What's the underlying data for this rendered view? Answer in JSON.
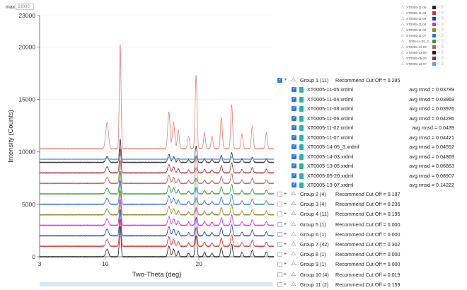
{
  "max_control": {
    "label": "max",
    "value": "23000"
  },
  "chart_data": {
    "type": "line",
    "xlabel": "Two-Theta (deg)",
    "ylabel": "Intensity (Counts)",
    "xlim": [
      3,
      28
    ],
    "ylim": [
      0,
      23000
    ],
    "x_ticks": [
      "3",
      "10",
      "20"
    ],
    "y_ticks": [
      "0",
      "5000",
      "10000",
      "15000",
      "20000",
      "23000"
    ],
    "y_tick_values": [
      0,
      5000,
      10000,
      15000,
      20000,
      23000
    ],
    "peaks": [
      {
        "x": 10.2,
        "h": 0.25,
        "w": 0.15
      },
      {
        "x": 11.6,
        "h": 1.0,
        "w": 0.09
      },
      {
        "x": 16.8,
        "h": 0.35,
        "w": 0.12
      },
      {
        "x": 17.3,
        "h": 0.25,
        "w": 0.12
      },
      {
        "x": 17.8,
        "h": 0.18,
        "w": 0.1
      },
      {
        "x": 18.9,
        "h": 0.12,
        "w": 0.1
      },
      {
        "x": 19.7,
        "h": 0.7,
        "w": 0.1
      },
      {
        "x": 20.6,
        "h": 0.15,
        "w": 0.1
      },
      {
        "x": 21.4,
        "h": 0.12,
        "w": 0.1
      },
      {
        "x": 22.4,
        "h": 0.3,
        "w": 0.1
      },
      {
        "x": 23.5,
        "h": 0.42,
        "w": 0.1
      },
      {
        "x": 24.6,
        "h": 0.14,
        "w": 0.1
      },
      {
        "x": 25.7,
        "h": 0.22,
        "w": 0.1
      },
      {
        "x": 27.2,
        "h": 0.15,
        "w": 0.1
      }
    ],
    "series": [
      {
        "offset": 0,
        "scale": 2900,
        "color": "#222222"
      },
      {
        "offset": 1000,
        "scale": 2600,
        "color": "#d03030"
      },
      {
        "offset": 2000,
        "scale": 2500,
        "color": "#2040c0"
      },
      {
        "offset": 3000,
        "scale": 2400,
        "color": "#d030d0"
      },
      {
        "offset": 4000,
        "scale": 2300,
        "color": "#8a8a20"
      },
      {
        "offset": 5000,
        "scale": 2300,
        "color": "#3070d0"
      },
      {
        "offset": 6000,
        "scale": 2200,
        "color": "#30a030"
      },
      {
        "offset": 7000,
        "scale": 2200,
        "color": "#b06060"
      },
      {
        "offset": 8000,
        "scale": 2300,
        "color": "#9a3030"
      },
      {
        "offset": 9000,
        "scale": 2200,
        "color": "#303030"
      },
      {
        "offset": 9300,
        "scale": 400,
        "color": "#60a0e0"
      },
      {
        "offset": 10300,
        "scale": 10000,
        "color": "#e08080"
      }
    ]
  },
  "legend": {
    "items": [
      {
        "name": "XT0005-11-05",
        "color": "#222222"
      },
      {
        "name": "XT0005-11-04",
        "color": "#d03030"
      },
      {
        "name": "XT0005-11-08",
        "color": "#2040c0"
      },
      {
        "name": "XT0005-11-06",
        "color": "#d030d0"
      },
      {
        "name": "XT0005-11-02",
        "color": "#8a8a20"
      },
      {
        "name": "XT0005-11-07",
        "color": "#3070d0"
      },
      {
        "name": "...0005-14-05_3...",
        "color": "#30a030"
      },
      {
        "name": "XT0005-14-03",
        "color": "#b06060"
      },
      {
        "name": "XT0005-13-05",
        "color": "#202020"
      },
      {
        "name": "XT0005-05-20",
        "color": "#9a3030"
      },
      {
        "name": "XT0005-13-07",
        "color": "#60a0e0"
      }
    ]
  },
  "group1": {
    "label": "Group 1 (11)",
    "cutoff": "Recommend Cut Off = 0.285",
    "files": [
      {
        "name": "XT0005-11-05.xrdml",
        "rmsd": "avg rmsd = 0.03789"
      },
      {
        "name": "XT0005-11-04.xrdml",
        "rmsd": "avg rmsd = 0.03969"
      },
      {
        "name": "XT0005-11-08.xrdml",
        "rmsd": "avg rmsd = 0.03976"
      },
      {
        "name": "XT0005-11-06.xrdml",
        "rmsd": "avg rmsd = 0.04286"
      },
      {
        "name": "XT0005-11-02.xrdml",
        "rmsd": "avg rmsd = 0.0439"
      },
      {
        "name": "XT0005-11-07.xrdml",
        "rmsd": "avg rmsd = 0.04421"
      },
      {
        "name": "XT0005-14-05_3.xrdml",
        "rmsd": "avg rmsd = 0.04552"
      },
      {
        "name": "XT0005-14-03.xrdml",
        "rmsd": "avg rmsd = 0.04869"
      },
      {
        "name": "XT0005-13-05.xrdml",
        "rmsd": "avg rmsd = 0.06883"
      },
      {
        "name": "XT0005-05-20.xrdml",
        "rmsd": "avg rmsd = 0.08907"
      },
      {
        "name": "XT0005-13-07.xrdml",
        "rmsd": "avg rmsd = 0.14222"
      }
    ]
  },
  "groups": [
    {
      "label": "Group 2 (4)",
      "cutoff": "Recommend Cut Off = 0.187"
    },
    {
      "label": "Group 3 (4)",
      "cutoff": "Recommend Cut Off = 0.236"
    },
    {
      "label": "Group 4 (11)",
      "cutoff": "Recommend Cut Off = 0.195"
    },
    {
      "label": "Group 5 (1)",
      "cutoff": "Recommend Cut Off = 0.000"
    },
    {
      "label": "Group 6 (1)",
      "cutoff": "Recommend Cut Off = 0.000"
    },
    {
      "label": "Group 7 (42)",
      "cutoff": "Recommend Cut Off = 0.302"
    },
    {
      "label": "Group 8 (1)",
      "cutoff": "Recommend Cut Off = 0.000"
    },
    {
      "label": "Group 9 (1)",
      "cutoff": "Recommend Cut Off = 0.000"
    },
    {
      "label": "Group 10 (4)",
      "cutoff": "Recommend Cut Off = 0.019"
    },
    {
      "label": "Group 11 (2)",
      "cutoff": "Recommend Cut Off = 0.159"
    }
  ]
}
